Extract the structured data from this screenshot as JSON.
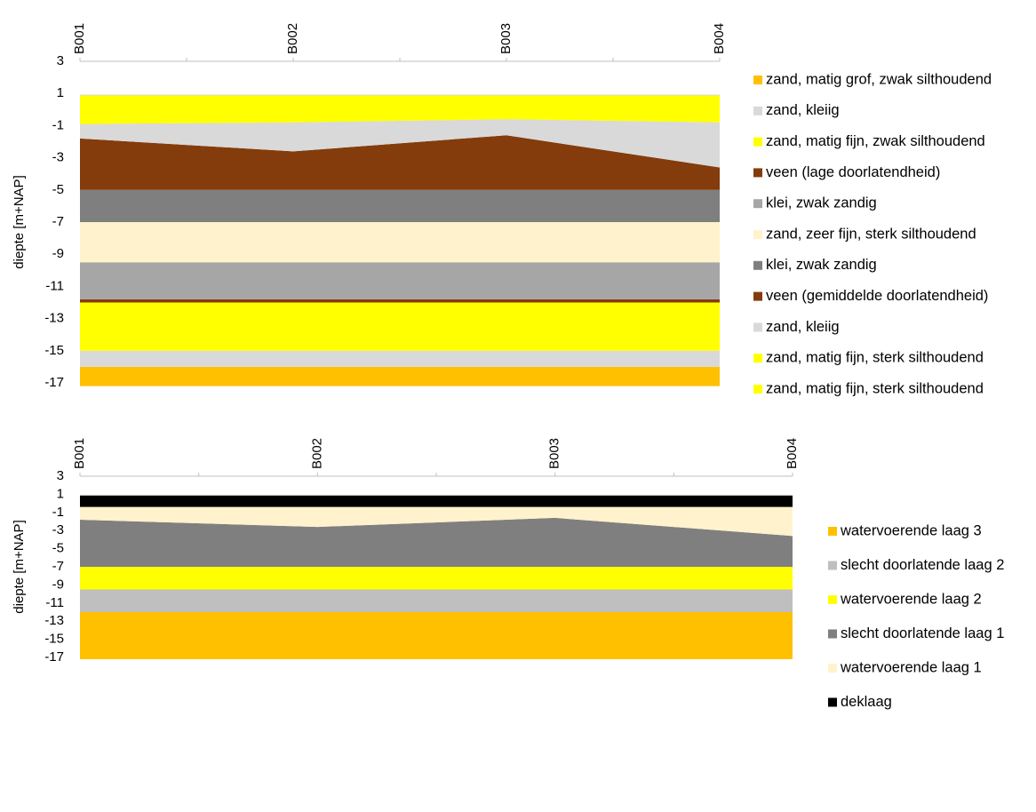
{
  "chart_data": [
    {
      "type": "area",
      "title": "",
      "ylabel": "diepte [m+NAP]",
      "categories": [
        "B001",
        "B002",
        "B003",
        "B004"
      ],
      "ylim": [
        -17,
        3
      ],
      "yticks": [
        3,
        1,
        -1,
        -3,
        -5,
        -7,
        -9,
        -11,
        -13,
        -15,
        -17
      ],
      "legend_position": "right",
      "layers": [
        {
          "name": "zand, matig grof, zwak silthoudend",
          "color": "#FFC000",
          "top": [
            -16,
            -16,
            -16,
            -16
          ],
          "bottom": [
            -17.2,
            -17.2,
            -17.2,
            -17.2
          ]
        },
        {
          "name": "zand, kleiig",
          "color": "#D9D9D9",
          "top": [
            -15,
            -15,
            -15,
            -15
          ],
          "bottom": [
            -16,
            -16,
            -16,
            -16
          ]
        },
        {
          "name": "zand, matig fijn, zwak silthoudend",
          "color": "#FFFF00",
          "top": [
            -12,
            -12,
            -12,
            -12
          ],
          "bottom": [
            -15,
            -15,
            -15,
            -15
          ]
        },
        {
          "name": "veen (lage doorlatendheid)",
          "color": "#843C0C",
          "top": [
            -11.8,
            -11.8,
            -11.8,
            -11.8
          ],
          "bottom": [
            -12,
            -12,
            -12,
            -12
          ]
        },
        {
          "name": "klei, zwak zandig",
          "color": "#A6A6A6",
          "top": [
            -9.5,
            -9.5,
            -9.5,
            -9.5
          ],
          "bottom": [
            -11.8,
            -11.8,
            -11.8,
            -11.8
          ]
        },
        {
          "name": "zand, zeer fijn, sterk silthoudend",
          "color": "#FFF2CC",
          "top": [
            -7,
            -7,
            -7,
            -7
          ],
          "bottom": [
            -9.5,
            -9.5,
            -9.5,
            -9.5
          ]
        },
        {
          "name": "klei, zwak zandig",
          "color": "#7F7F7F",
          "top": [
            -5,
            -5,
            -5,
            -5
          ],
          "bottom": [
            -7,
            -7,
            -7,
            -7
          ]
        },
        {
          "name": "veen (gemiddelde doorlatendheid)",
          "color": "#843C0C",
          "top": [
            -1.8,
            -2.6,
            -1.6,
            -3.6
          ],
          "bottom": [
            -5,
            -5,
            -5,
            -5
          ]
        },
        {
          "name": "zand, kleiig",
          "color": "#D9D9D9",
          "top": [
            -0.9,
            -0.8,
            -0.6,
            -0.8
          ],
          "bottom": [
            -1.8,
            -2.6,
            -1.6,
            -3.6
          ]
        },
        {
          "name": "zand, matig fijn, sterk silthoudend",
          "color": "#FFFF00",
          "top": [
            0.9,
            0.9,
            0.9,
            0.9
          ],
          "bottom": [
            -0.9,
            -0.8,
            -0.6,
            -0.8
          ]
        },
        {
          "name": "zand, matig fijn, sterk silthoudend",
          "color": "#FFFF00",
          "top": [
            0.9,
            0.9,
            0.9,
            0.9
          ],
          "bottom": [
            0.9,
            0.9,
            0.9,
            0.9
          ]
        }
      ]
    },
    {
      "type": "area",
      "title": "",
      "ylabel": "diepte [m+NAP]",
      "categories": [
        "B001",
        "B002",
        "B003",
        "B004"
      ],
      "ylim": [
        -17,
        3
      ],
      "yticks": [
        3,
        1,
        -1,
        -3,
        -5,
        -7,
        -9,
        -11,
        -13,
        -15,
        -17
      ],
      "legend_position": "right",
      "layers": [
        {
          "name": "watervoerende laag 3",
          "color": "#FFC000",
          "top": [
            -12,
            -12,
            -12,
            -12
          ],
          "bottom": [
            -17.2,
            -17.2,
            -17.2,
            -17.2
          ]
        },
        {
          "name": "slecht doorlatende laag 2",
          "color": "#BFBFBF",
          "top": [
            -9.5,
            -9.5,
            -9.5,
            -9.5
          ],
          "bottom": [
            -12,
            -12,
            -12,
            -12
          ]
        },
        {
          "name": "watervoerende laag 2",
          "color": "#FFFF00",
          "top": [
            -7,
            -7,
            -7,
            -7
          ],
          "bottom": [
            -9.5,
            -9.5,
            -9.5,
            -9.5
          ]
        },
        {
          "name": "slecht doorlatende laag 1",
          "color": "#7F7F7F",
          "top": [
            -1.8,
            -2.6,
            -1.6,
            -3.6
          ],
          "bottom": [
            -7,
            -7,
            -7,
            -7
          ]
        },
        {
          "name": "watervoerende laag 1",
          "color": "#FFF2CC",
          "top": [
            -0.4,
            -0.4,
            -0.4,
            -0.4
          ],
          "bottom": [
            -1.8,
            -2.6,
            -1.6,
            -3.6
          ]
        },
        {
          "name": "deklaag",
          "color": "#000000",
          "top": [
            0.9,
            0.9,
            0.9,
            0.9
          ],
          "bottom": [
            -0.4,
            -0.4,
            -0.4,
            -0.4
          ]
        }
      ]
    }
  ]
}
